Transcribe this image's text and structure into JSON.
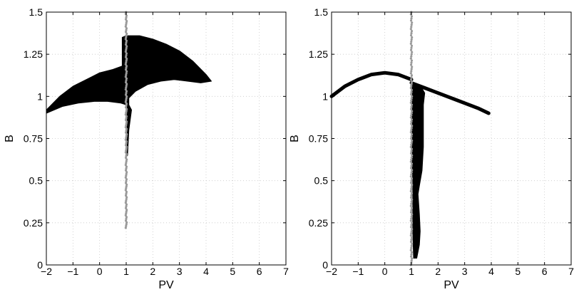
{
  "chart_data": [
    {
      "type": "scatter",
      "title": "",
      "xlabel": "PV",
      "ylabel": "B",
      "xlim": [
        -2,
        7
      ],
      "ylim": [
        0,
        1.5
      ],
      "xticks": [
        "−2",
        "−1",
        "0",
        "1",
        "2",
        "3",
        "4",
        "5",
        "6",
        "7"
      ],
      "yticks": [
        "0",
        "0.25",
        "0.5",
        "0.75",
        "1",
        "1.25",
        "1.5"
      ],
      "grid": "dotted",
      "legend": "none",
      "colors": {
        "dense_region": "#000000",
        "reference_line": "#9a9a9a"
      },
      "series": [
        {
          "kind": "filled_region",
          "color": "#000000",
          "outline": [
            [
              -2,
              0.92
            ],
            [
              -1.5,
              1.0
            ],
            [
              -1.0,
              1.06
            ],
            [
              -0.5,
              1.1
            ],
            [
              0.0,
              1.14
            ],
            [
              0.5,
              1.16
            ],
            [
              0.85,
              1.18
            ],
            [
              0.85,
              1.23
            ],
            [
              0.85,
              1.28
            ],
            [
              0.85,
              1.35
            ],
            [
              1.0,
              1.36
            ],
            [
              1.5,
              1.36
            ],
            [
              2.0,
              1.34
            ],
            [
              2.5,
              1.31
            ],
            [
              3.0,
              1.27
            ],
            [
              3.5,
              1.21
            ],
            [
              4.0,
              1.13
            ],
            [
              4.2,
              1.09
            ],
            [
              3.8,
              1.08
            ],
            [
              3.3,
              1.09
            ],
            [
              2.8,
              1.1
            ],
            [
              2.3,
              1.09
            ],
            [
              1.8,
              1.07
            ],
            [
              1.35,
              1.03
            ],
            [
              1.1,
              0.99
            ],
            [
              1.1,
              0.95
            ],
            [
              1.2,
              0.92
            ],
            [
              1.1,
              0.8
            ],
            [
              1.05,
              0.65
            ],
            [
              0.99,
              0.65
            ],
            [
              1.0,
              0.8
            ],
            [
              1.0,
              0.95
            ],
            [
              0.8,
              0.96
            ],
            [
              0.3,
              0.97
            ],
            [
              -0.2,
              0.97
            ],
            [
              -0.8,
              0.96
            ],
            [
              -1.4,
              0.94
            ],
            [
              -2,
              0.9
            ]
          ]
        },
        {
          "kind": "vertical_points",
          "color": "#9a9a9a",
          "x": 1.0,
          "y_range": [
            0.22,
            1.5
          ]
        }
      ]
    },
    {
      "type": "scatter",
      "title": "",
      "xlabel": "PV",
      "ylabel": "B",
      "xlim": [
        -2,
        7
      ],
      "ylim": [
        0,
        1.5
      ],
      "xticks": [
        "−2",
        "−1",
        "0",
        "1",
        "2",
        "3",
        "4",
        "5",
        "6",
        "7"
      ],
      "yticks": [
        "0",
        "0.25",
        "0.5",
        "0.75",
        "1",
        "1.25",
        "1.5"
      ],
      "grid": "dotted",
      "legend": "none",
      "colors": {
        "dense_region": "#000000",
        "reference_line": "#9a9a9a"
      },
      "series": [
        {
          "kind": "curve",
          "color": "#000000",
          "x": [
            -2.0,
            -1.5,
            -1.0,
            -0.5,
            0.0,
            0.5,
            1.0
          ],
          "y": [
            1.0,
            1.06,
            1.1,
            1.13,
            1.14,
            1.13,
            1.1
          ]
        },
        {
          "kind": "curve",
          "color": "#000000",
          "x": [
            1.0,
            1.5,
            2.0,
            2.5,
            3.0,
            3.5,
            3.9
          ],
          "y": [
            1.08,
            1.05,
            1.02,
            0.99,
            0.96,
            0.93,
            0.9
          ]
        },
        {
          "kind": "filled_region",
          "color": "#000000",
          "outline": [
            [
              1.0,
              1.08
            ],
            [
              1.15,
              1.07
            ],
            [
              1.35,
              1.06
            ],
            [
              1.5,
              1.02
            ],
            [
              1.45,
              0.95
            ],
            [
              1.45,
              0.85
            ],
            [
              1.45,
              0.7
            ],
            [
              1.4,
              0.56
            ],
            [
              1.3,
              0.47
            ],
            [
              1.25,
              0.42
            ],
            [
              1.3,
              0.3
            ],
            [
              1.33,
              0.2
            ],
            [
              1.3,
              0.12
            ],
            [
              1.2,
              0.04
            ],
            [
              1.08,
              0.04
            ],
            [
              1.05,
              0.2
            ],
            [
              1.05,
              0.35
            ],
            [
              1.05,
              0.5
            ],
            [
              1.0,
              0.7
            ],
            [
              1.0,
              0.9
            ]
          ]
        },
        {
          "kind": "vertical_points",
          "color": "#9a9a9a",
          "x": 1.0,
          "y_range": [
            0.0,
            1.5
          ]
        }
      ]
    }
  ]
}
